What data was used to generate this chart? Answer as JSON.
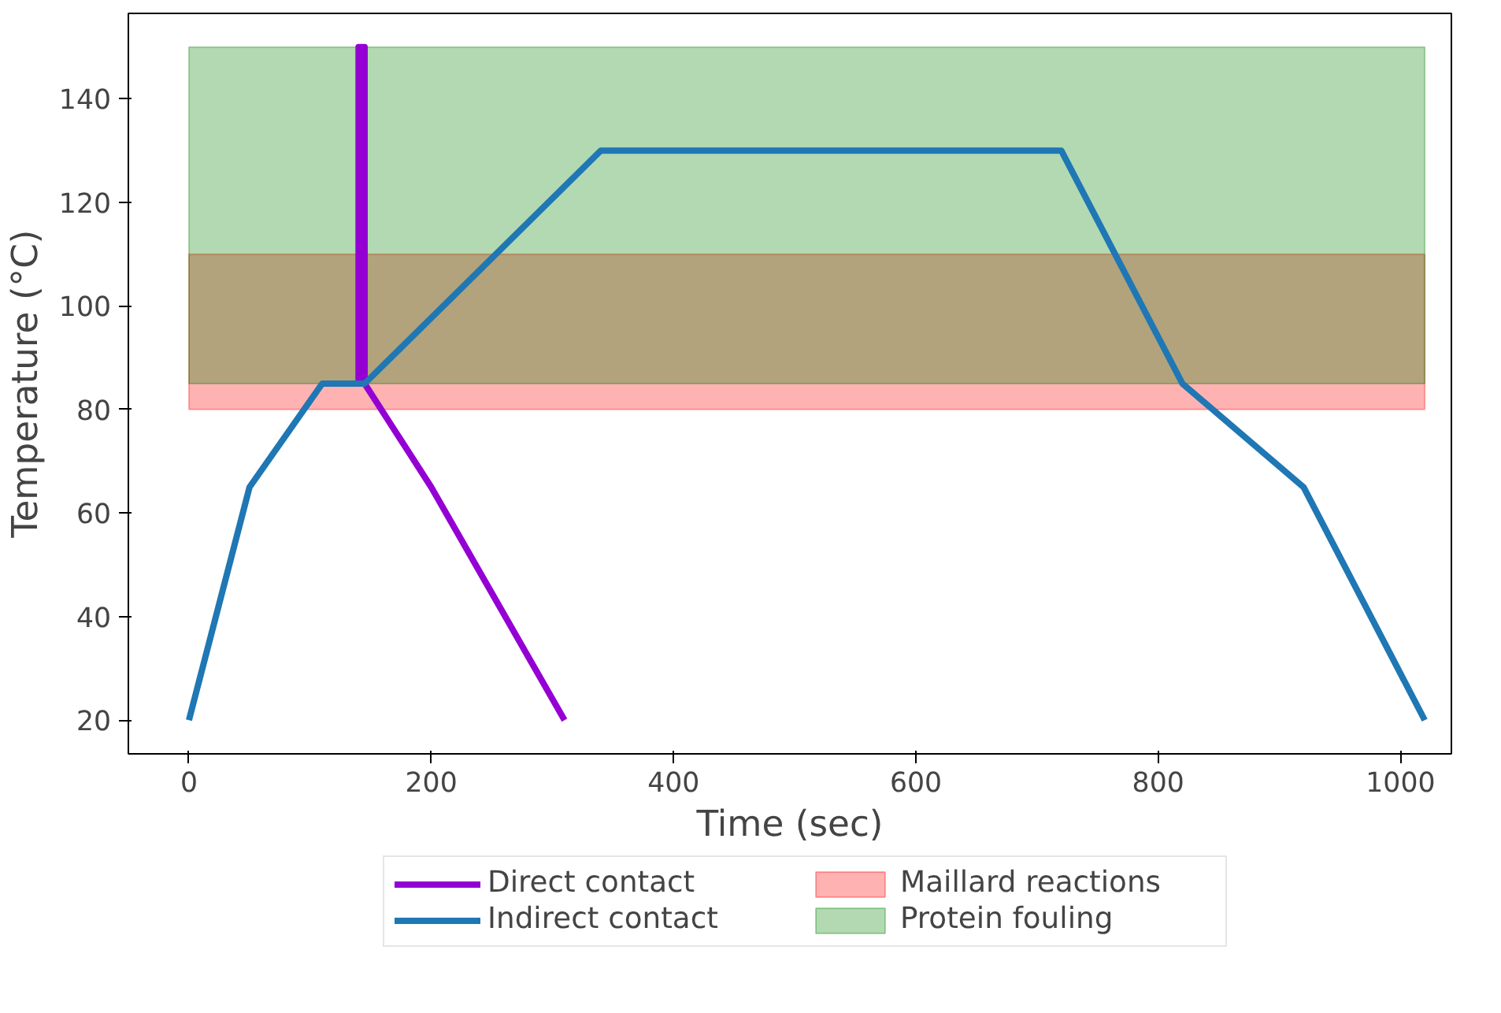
{
  "chart_data": {
    "type": "line",
    "xlabel": "Time (sec)",
    "ylabel": "Temperature (°C)",
    "xlim": [
      -50,
      1042
    ],
    "ylim": [
      13.5,
      156.5
    ],
    "xticks": [
      0,
      200,
      400,
      600,
      800,
      1000
    ],
    "yticks": [
      20,
      40,
      60,
      80,
      100,
      120,
      140
    ],
    "grid": false,
    "legend": "bottom",
    "line_style": "solid",
    "marker": "none",
    "series": [
      {
        "name": "Direct contact",
        "color": "#9400d3",
        "x": [
          140,
          140,
          145,
          145,
          200,
          310
        ],
        "values": [
          85,
          150,
          150,
          85,
          65,
          20
        ]
      },
      {
        "name": "Indirect contact",
        "color": "#1f77b4",
        "x": [
          0,
          50,
          110,
          145,
          340,
          720,
          820,
          920,
          1020
        ],
        "values": [
          20,
          65,
          85,
          85,
          130,
          130,
          85,
          65,
          20
        ]
      }
    ],
    "bands": [
      {
        "axis": "y",
        "from": 80,
        "to": 110,
        "label": "Maillard reactions",
        "color": "#ff0000"
      },
      {
        "axis": "y",
        "from": 85,
        "to": 150,
        "label": "Protein fouling",
        "color": "#008000"
      }
    ]
  }
}
